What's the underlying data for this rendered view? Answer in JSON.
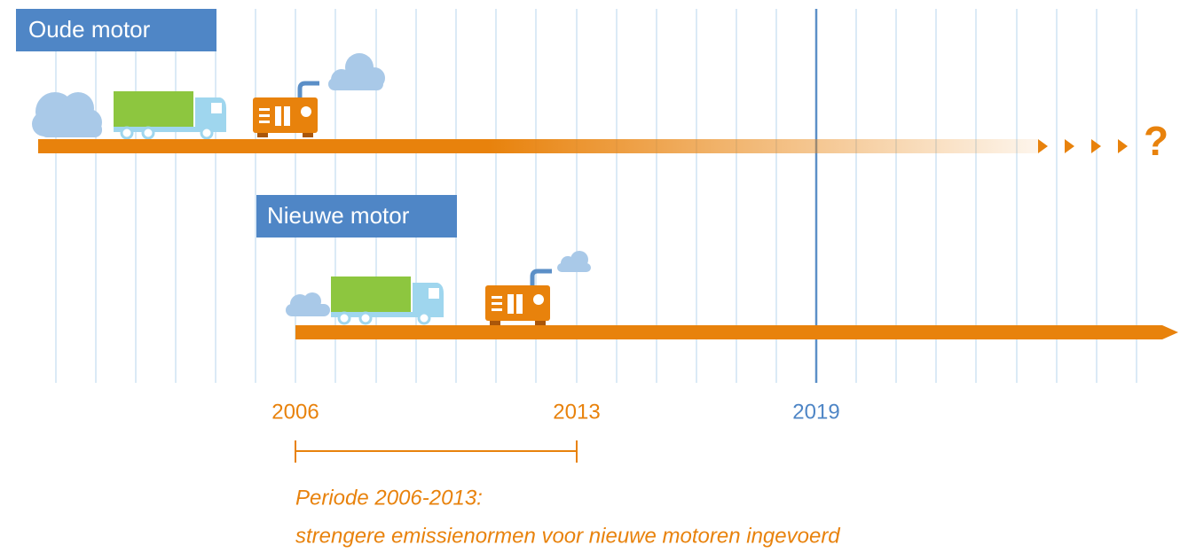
{
  "old_engine": {
    "label": "Oude motor",
    "unknown": "?"
  },
  "new_engine": {
    "label": "Nieuwe motor"
  },
  "years": [
    "2006",
    "2013",
    "2019"
  ],
  "period": {
    "title": "Periode 2006-2013:",
    "description": "strengere emissienormen voor nieuwe motoren ingevoerd"
  }
}
